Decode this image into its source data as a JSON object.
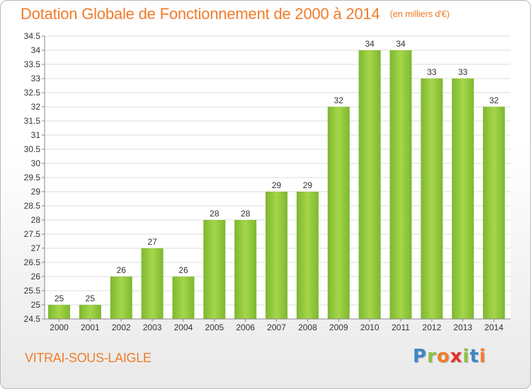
{
  "chart_data": {
    "type": "bar",
    "title": "Dotation Globale de Fonctionnement de 2000 à 2014",
    "unit_label": "(en milliers d'€)",
    "categories": [
      "2000",
      "2001",
      "2002",
      "2003",
      "2004",
      "2005",
      "2006",
      "2007",
      "2008",
      "2009",
      "2010",
      "2011",
      "2012",
      "2013",
      "2014"
    ],
    "values": [
      25,
      25,
      26,
      27,
      26,
      28,
      28,
      29,
      29,
      32,
      34,
      34,
      33,
      33,
      32
    ],
    "value_labels": [
      "25",
      "25",
      "26",
      "27",
      "26",
      "28",
      "28",
      "29",
      "29",
      "32",
      "34",
      "34",
      "33",
      "33",
      "32"
    ],
    "ylim": [
      24.5,
      34.5
    ],
    "yticks": [
      "24.5",
      "25",
      "25.5",
      "26",
      "26.5",
      "27",
      "27.5",
      "28",
      "28.5",
      "29",
      "29.5",
      "30",
      "30.5",
      "31",
      "31.5",
      "32",
      "32.5",
      "33",
      "33.5",
      "34",
      "34.5"
    ],
    "grid": true,
    "bar_color": "#7cb82f",
    "bar_color_light": "#a6d64a"
  },
  "commune": "VITRAI-SOUS-LAIGLE",
  "logo": {
    "letters": [
      "P",
      "r",
      "o",
      "x",
      "i",
      "t",
      "i"
    ],
    "colors": [
      "#3f86c8",
      "#8cbf3f",
      "#f07c2b",
      "#e2322b",
      "#8cbf3f",
      "#3f86c8",
      "#f07c2b"
    ]
  }
}
